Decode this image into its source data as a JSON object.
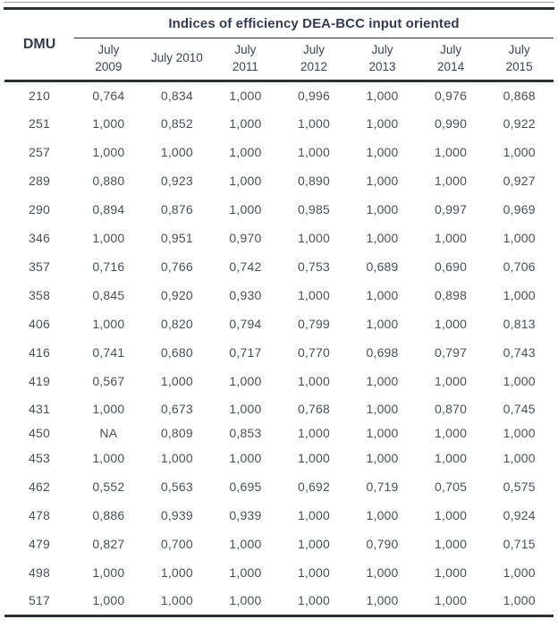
{
  "title": "Indices of efficiency DEA-BCC input oriented",
  "table": {
    "dmu_header": "DMU",
    "columns": [
      "July\n2009",
      "July 2010",
      "July\n2011",
      "July\n2012",
      "July\n2013",
      "July\n2014",
      "July\n2015"
    ],
    "rows": [
      {
        "dmu": "210",
        "values": [
          "0,764",
          "0,834",
          "1,000",
          "0,996",
          "1,000",
          "0,976",
          "0,868"
        ]
      },
      {
        "dmu": "251",
        "values": [
          "1,000",
          "0,852",
          "1,000",
          "1,000",
          "1,000",
          "0,990",
          "0,922"
        ]
      },
      {
        "dmu": "257",
        "values": [
          "1,000",
          "1,000",
          "1,000",
          "1,000",
          "1,000",
          "1,000",
          "1,000"
        ]
      },
      {
        "dmu": "289",
        "values": [
          "0,880",
          "0,923",
          "1,000",
          "0,890",
          "1,000",
          "1,000",
          "0,927"
        ]
      },
      {
        "dmu": "290",
        "values": [
          "0,894",
          "0,876",
          "1,000",
          "0,985",
          "1,000",
          "0,997",
          "0,969"
        ]
      },
      {
        "dmu": "346",
        "values": [
          "1,000",
          "0,951",
          "0,970",
          "1,000",
          "1,000",
          "1,000",
          "1,000"
        ]
      },
      {
        "dmu": "357",
        "values": [
          "0,716",
          "0,766",
          "0,742",
          "0,753",
          "0,689",
          "0,690",
          "0,706"
        ]
      },
      {
        "dmu": "358",
        "values": [
          "0,845",
          "0,920",
          "0,930",
          "1,000",
          "1,000",
          "0,898",
          "1,000"
        ]
      },
      {
        "dmu": "406",
        "values": [
          "1,000",
          "0,820",
          "0,794",
          "0,799",
          "1,000",
          "1,000",
          "0,813"
        ]
      },
      {
        "dmu": "416",
        "values": [
          "0,741",
          "0,680",
          "0,717",
          "0,770",
          "0,698",
          "0,797",
          "0,743"
        ]
      },
      {
        "dmu": "419",
        "values": [
          "0,567",
          "1,000",
          "1,000",
          "1,000",
          "1,000",
          "1,000",
          "1,000"
        ]
      },
      {
        "dmu": "431",
        "values": [
          "1,000",
          "0,673",
          "1,000",
          "0,768",
          "1,000",
          "0,870",
          "0,745"
        ]
      },
      {
        "dmu": "450",
        "values": [
          "NA",
          "0,809",
          "0,853",
          "1,000",
          "1,000",
          "1,000",
          "1,000"
        ]
      },
      {
        "dmu": "453",
        "values": [
          "1,000",
          "1,000",
          "1,000",
          "1,000",
          "1,000",
          "1,000",
          "1,000"
        ]
      },
      {
        "dmu": "462",
        "values": [
          "0,552",
          "0,563",
          "0,695",
          "0,692",
          "0,719",
          "0,705",
          "0,575"
        ]
      },
      {
        "dmu": "478",
        "values": [
          "0,886",
          "0,939",
          "0,939",
          "1,000",
          "1,000",
          "1,000",
          "0,924"
        ]
      },
      {
        "dmu": "479",
        "values": [
          "0,827",
          "0,700",
          "1,000",
          "1,000",
          "0,790",
          "1,000",
          "0,715"
        ]
      },
      {
        "dmu": "498",
        "values": [
          "1,000",
          "1,000",
          "1,000",
          "1,000",
          "1,000",
          "1,000",
          "1,000"
        ]
      },
      {
        "dmu": "517",
        "values": [
          "1,000",
          "1,000",
          "1,000",
          "1,000",
          "1,000",
          "1,000",
          "1,000"
        ]
      }
    ]
  },
  "colors": {
    "title_text": "#333c4f",
    "header_text": "#3d4452",
    "body_text": "#4a5059",
    "rule_dark": "#2e3236",
    "rule_thin_top": "#9aa0a4",
    "background": "#ffffff"
  }
}
